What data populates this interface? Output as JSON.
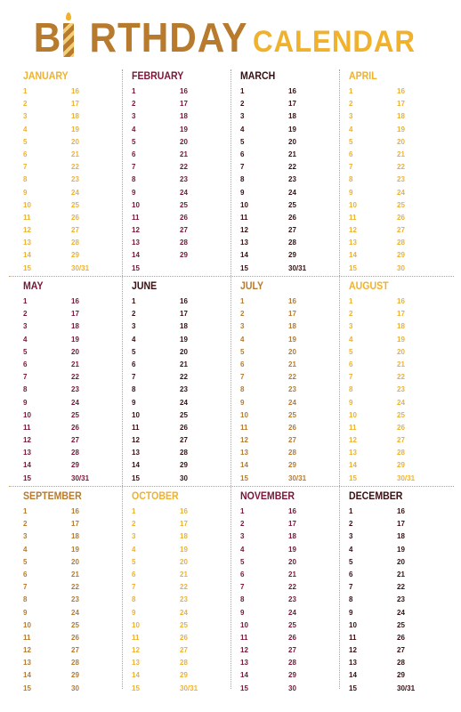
{
  "title": {
    "part1a": "B",
    "part1b": "RTHDAY",
    "part2": "CALENDAR"
  },
  "colors": {
    "gold": "#f0b12c",
    "maroon": "#7a1535",
    "brown": "#b87a2c",
    "dark": "#3a0f12"
  },
  "months": [
    {
      "name": "JANUARY",
      "color": "#f0b12c",
      "left": [
        "1",
        "2",
        "3",
        "4",
        "5",
        "6",
        "7",
        "8",
        "9",
        "10",
        "11",
        "12",
        "13",
        "14",
        "15"
      ],
      "right": [
        "16",
        "17",
        "18",
        "19",
        "20",
        "21",
        "22",
        "23",
        "24",
        "25",
        "26",
        "27",
        "28",
        "29",
        "30/31"
      ]
    },
    {
      "name": "FEBRUARY",
      "color": "#7a1535",
      "left": [
        "1",
        "2",
        "3",
        "4",
        "5",
        "6",
        "7",
        "8",
        "9",
        "10",
        "11",
        "12",
        "13",
        "14",
        "15"
      ],
      "right": [
        "16",
        "17",
        "18",
        "19",
        "20",
        "21",
        "22",
        "23",
        "24",
        "25",
        "26",
        "27",
        "28",
        "29"
      ]
    },
    {
      "name": "MARCH",
      "color": "#3a0f12",
      "left": [
        "1",
        "2",
        "3",
        "4",
        "5",
        "6",
        "7",
        "8",
        "9",
        "10",
        "11",
        "12",
        "13",
        "14",
        "15"
      ],
      "right": [
        "16",
        "17",
        "18",
        "19",
        "20",
        "21",
        "22",
        "23",
        "24",
        "25",
        "26",
        "27",
        "28",
        "29",
        "30/31"
      ]
    },
    {
      "name": "APRIL",
      "color": "#f0b12c",
      "left": [
        "1",
        "2",
        "3",
        "4",
        "5",
        "6",
        "7",
        "8",
        "9",
        "10",
        "11",
        "12",
        "13",
        "14",
        "15"
      ],
      "right": [
        "16",
        "17",
        "18",
        "19",
        "20",
        "21",
        "22",
        "23",
        "24",
        "25",
        "26",
        "27",
        "28",
        "29",
        "30"
      ]
    },
    {
      "name": "MAY",
      "color": "#7a1535",
      "left": [
        "1",
        "2",
        "3",
        "4",
        "5",
        "6",
        "7",
        "8",
        "9",
        "10",
        "11",
        "12",
        "13",
        "14",
        "15"
      ],
      "right": [
        "16",
        "17",
        "18",
        "19",
        "20",
        "21",
        "22",
        "23",
        "24",
        "25",
        "26",
        "27",
        "28",
        "29",
        "30/31"
      ]
    },
    {
      "name": "JUNE",
      "color": "#3a0f12",
      "left": [
        "1",
        "2",
        "3",
        "4",
        "5",
        "6",
        "7",
        "8",
        "9",
        "10",
        "11",
        "12",
        "13",
        "14",
        "15"
      ],
      "right": [
        "16",
        "17",
        "18",
        "19",
        "20",
        "21",
        "22",
        "23",
        "24",
        "25",
        "26",
        "27",
        "28",
        "29",
        "30"
      ]
    },
    {
      "name": "JULY",
      "color": "#b87a2c",
      "left": [
        "1",
        "2",
        "3",
        "4",
        "5",
        "6",
        "7",
        "8",
        "9",
        "10",
        "11",
        "12",
        "13",
        "14",
        "15"
      ],
      "right": [
        "16",
        "17",
        "18",
        "19",
        "20",
        "21",
        "22",
        "23",
        "24",
        "25",
        "26",
        "27",
        "28",
        "29",
        "30/31"
      ]
    },
    {
      "name": "AUGUST",
      "color": "#f0b12c",
      "left": [
        "1",
        "2",
        "3",
        "4",
        "5",
        "6",
        "7",
        "8",
        "9",
        "10",
        "11",
        "12",
        "13",
        "14",
        "15"
      ],
      "right": [
        "16",
        "17",
        "18",
        "19",
        "20",
        "21",
        "22",
        "23",
        "24",
        "25",
        "26",
        "27",
        "28",
        "29",
        "30/31"
      ]
    },
    {
      "name": "SEPTEMBER",
      "color": "#b87a2c",
      "left": [
        "1",
        "2",
        "3",
        "4",
        "5",
        "6",
        "7",
        "8",
        "9",
        "10",
        "11",
        "12",
        "13",
        "14",
        "15"
      ],
      "right": [
        "16",
        "17",
        "18",
        "19",
        "20",
        "21",
        "22",
        "23",
        "24",
        "25",
        "26",
        "27",
        "28",
        "29",
        "30"
      ]
    },
    {
      "name": "OCTOBER",
      "color": "#f0b12c",
      "left": [
        "1",
        "2",
        "3",
        "4",
        "5",
        "6",
        "7",
        "8",
        "9",
        "10",
        "11",
        "12",
        "13",
        "14",
        "15"
      ],
      "right": [
        "16",
        "17",
        "18",
        "19",
        "20",
        "21",
        "22",
        "23",
        "24",
        "25",
        "26",
        "27",
        "28",
        "29",
        "30/31"
      ]
    },
    {
      "name": "NOVEMBER",
      "color": "#7a1535",
      "left": [
        "1",
        "2",
        "3",
        "4",
        "5",
        "6",
        "7",
        "8",
        "9",
        "10",
        "11",
        "12",
        "13",
        "14",
        "15"
      ],
      "right": [
        "16",
        "17",
        "18",
        "19",
        "20",
        "21",
        "22",
        "23",
        "24",
        "25",
        "26",
        "27",
        "28",
        "29",
        "30"
      ]
    },
    {
      "name": "DECEMBER",
      "color": "#3a0f12",
      "left": [
        "1",
        "2",
        "3",
        "4",
        "5",
        "6",
        "7",
        "8",
        "9",
        "10",
        "11",
        "12",
        "13",
        "14",
        "15"
      ],
      "right": [
        "16",
        "17",
        "18",
        "19",
        "20",
        "21",
        "22",
        "23",
        "24",
        "25",
        "26",
        "27",
        "28",
        "29",
        "30/31"
      ]
    }
  ]
}
